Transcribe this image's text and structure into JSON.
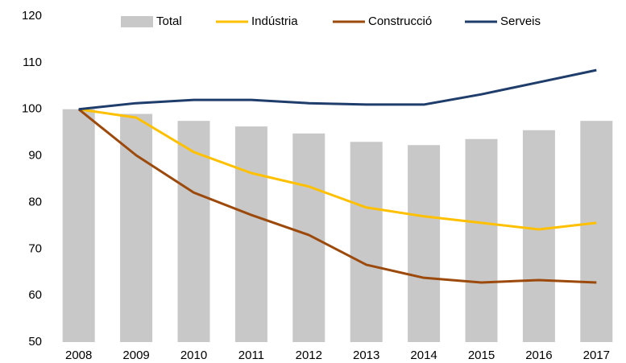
{
  "chart_data": {
    "type": "bar-line",
    "categories": [
      "2008",
      "2009",
      "2010",
      "2011",
      "2012",
      "2013",
      "2014",
      "2015",
      "2016",
      "2017"
    ],
    "series": [
      {
        "name": "Total",
        "type": "bar",
        "color": "#c8c8c8",
        "values": [
          100,
          99,
          97.5,
          96.3,
          94.8,
          93,
          92.3,
          93.6,
          95.5,
          97.5
        ]
      },
      {
        "name": "Indústria",
        "type": "line",
        "color": "#ffc000",
        "values": [
          100,
          98.2,
          90.8,
          86.3,
          83.4,
          78.9,
          77,
          75.6,
          74.2,
          75.6
        ]
      },
      {
        "name": "Construcció",
        "type": "line",
        "color": "#9c4a0c",
        "values": [
          100,
          90.1,
          82.1,
          77.3,
          73,
          66.6,
          63.8,
          62.8,
          63.3,
          62.8
        ]
      },
      {
        "name": "Serveis",
        "type": "line",
        "color": "#1f3d6b",
        "values": [
          100,
          101.3,
          102,
          102,
          101.3,
          101,
          101,
          103.2,
          105.8,
          108.4
        ]
      }
    ],
    "ylim": [
      50,
      120
    ],
    "yticks": [
      50,
      60,
      70,
      80,
      90,
      100,
      110,
      120
    ],
    "grid": false
  }
}
